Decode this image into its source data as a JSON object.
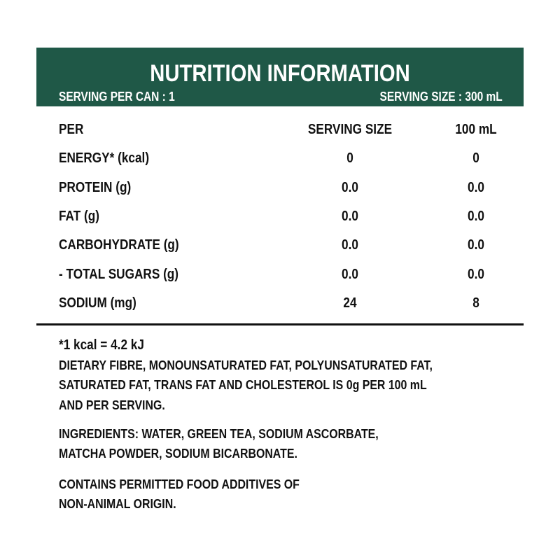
{
  "header": {
    "title": "NUTRITION INFORMATION",
    "serving_per_can": "SERVING PER CAN : 1",
    "serving_size": "SERVING SIZE : 300 mL"
  },
  "table": {
    "columns": [
      "PER",
      "SERVING SIZE",
      "100 mL"
    ],
    "rows": [
      [
        "ENERGY* (kcal)",
        "0",
        "0"
      ],
      [
        "PROTEIN (g)",
        "0.0",
        "0.0"
      ],
      [
        "FAT (g)",
        "0.0",
        "0.0"
      ],
      [
        "CARBOHYDRATE (g)",
        "0.0",
        "0.0"
      ],
      [
        "- TOTAL SUGARS (g)",
        "0.0",
        "0.0"
      ],
      [
        "SODIUM (mg)",
        "24",
        "8"
      ]
    ]
  },
  "notes": {
    "footnote": "*1 kcal = 4.2 kJ",
    "paragraphs": [
      [
        "DIETARY FIBRE, MONOUNSATURATED FAT, POLYUNSATURATED FAT,",
        "SATURATED FAT, TRANS FAT AND CHOLESTEROL IS 0g PER 100 mL",
        "AND PER SERVING."
      ],
      [
        "INGREDIENTS: WATER, GREEN TEA, SODIUM ASCORBATE,",
        "MATCHA POWDER, SODIUM BICARBONATE."
      ],
      [
        "CONTAINS PERMITTED FOOD ADDITIVES OF",
        "NON-ANIMAL ORIGIN."
      ]
    ]
  }
}
